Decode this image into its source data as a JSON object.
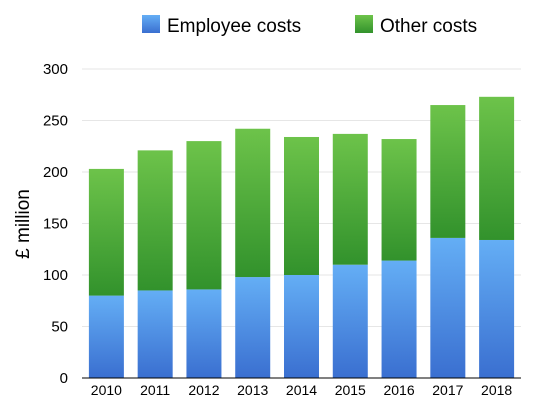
{
  "chart_data": {
    "type": "bar",
    "stacked": true,
    "title": "",
    "xlabel": "",
    "ylabel": "£ million",
    "ylim": [
      0,
      300
    ],
    "yticks": [
      0,
      50,
      100,
      150,
      200,
      250,
      300
    ],
    "grid": true,
    "legend_position": "top",
    "categories": [
      "2010",
      "2011",
      "2012",
      "2013",
      "2014",
      "2015",
      "2016",
      "2017",
      "2018"
    ],
    "series": [
      {
        "name": "Employee costs",
        "color_top": "#64aef5",
        "color_bottom": "#3a6fd0",
        "values": [
          80,
          85,
          86,
          98,
          100,
          110,
          114,
          136,
          134
        ]
      },
      {
        "name": "Other costs",
        "color_top": "#6dc34a",
        "color_bottom": "#32922c",
        "values": [
          123,
          136,
          144,
          144,
          134,
          127,
          118,
          129,
          139
        ]
      }
    ]
  }
}
